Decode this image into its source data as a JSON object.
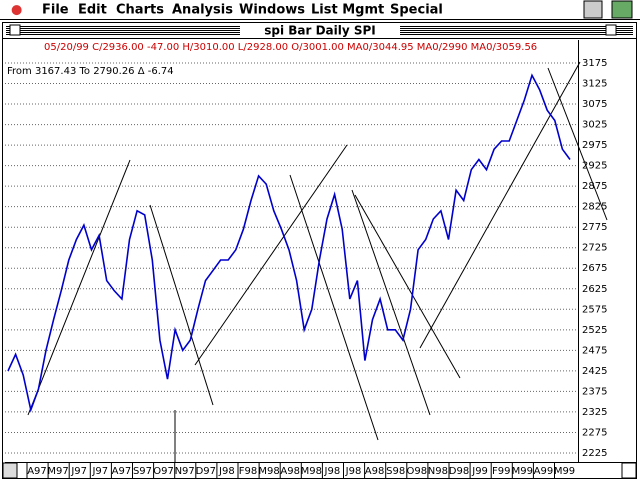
{
  "menu": [
    "File",
    "Edit",
    "Charts",
    "Analysis",
    "Windows",
    "List Mgmt",
    "Special"
  ],
  "window": {
    "title": "spi Bar Daily  SPI"
  },
  "info": "05/20/99 C/2936.00 -47.00 H/3010.00 L/2928.00 O/3001.00 MA0/3044.95 MA0/2990 MA0/3059.56",
  "range": "From  3167.43 To  2790.26 Δ -6.74",
  "chart_data": {
    "type": "line",
    "color": "#0000cc",
    "grid": true,
    "x_labels": [
      "A97",
      "M97",
      "J97",
      "J97",
      "A97",
      "S97",
      "O97",
      "N97",
      "D97",
      "J98",
      "F98",
      "M98",
      "A98",
      "M98",
      "J98",
      "J98",
      "A98",
      "S98",
      "O98",
      "N98",
      "D98",
      "J99",
      "F99",
      "M99",
      "A99",
      "M99"
    ],
    "values": [
      2425,
      2465,
      2415,
      2330,
      2380,
      2475,
      2550,
      2620,
      2695,
      2745,
      2780,
      2720,
      2755,
      2645,
      2620,
      2600,
      2745,
      2815,
      2805,
      2695,
      2500,
      2405,
      2525,
      2475,
      2500,
      2575,
      2645,
      2670,
      2695,
      2695,
      2720,
      2770,
      2840,
      2900,
      2880,
      2815,
      2770,
      2720,
      2645,
      2525,
      2575,
      2695,
      2795,
      2855,
      2770,
      2600,
      2645,
      2450,
      2550,
      2600,
      2525,
      2525,
      2500,
      2575,
      2720,
      2745,
      2795,
      2815,
      2745,
      2865,
      2840,
      2915,
      2940,
      2915,
      2965,
      2985,
      2985,
      3035,
      3085,
      3145,
      3110,
      3060,
      3035,
      2965,
      2940
    ],
    "ylim": [
      2203,
      3231
    ],
    "yticks": [
      2225,
      2275,
      2325,
      2375,
      2425,
      2475,
      2525,
      2575,
      2625,
      2675,
      2725,
      2775,
      2825,
      2875,
      2925,
      2975,
      3025,
      3075,
      3125,
      3175
    ]
  }
}
